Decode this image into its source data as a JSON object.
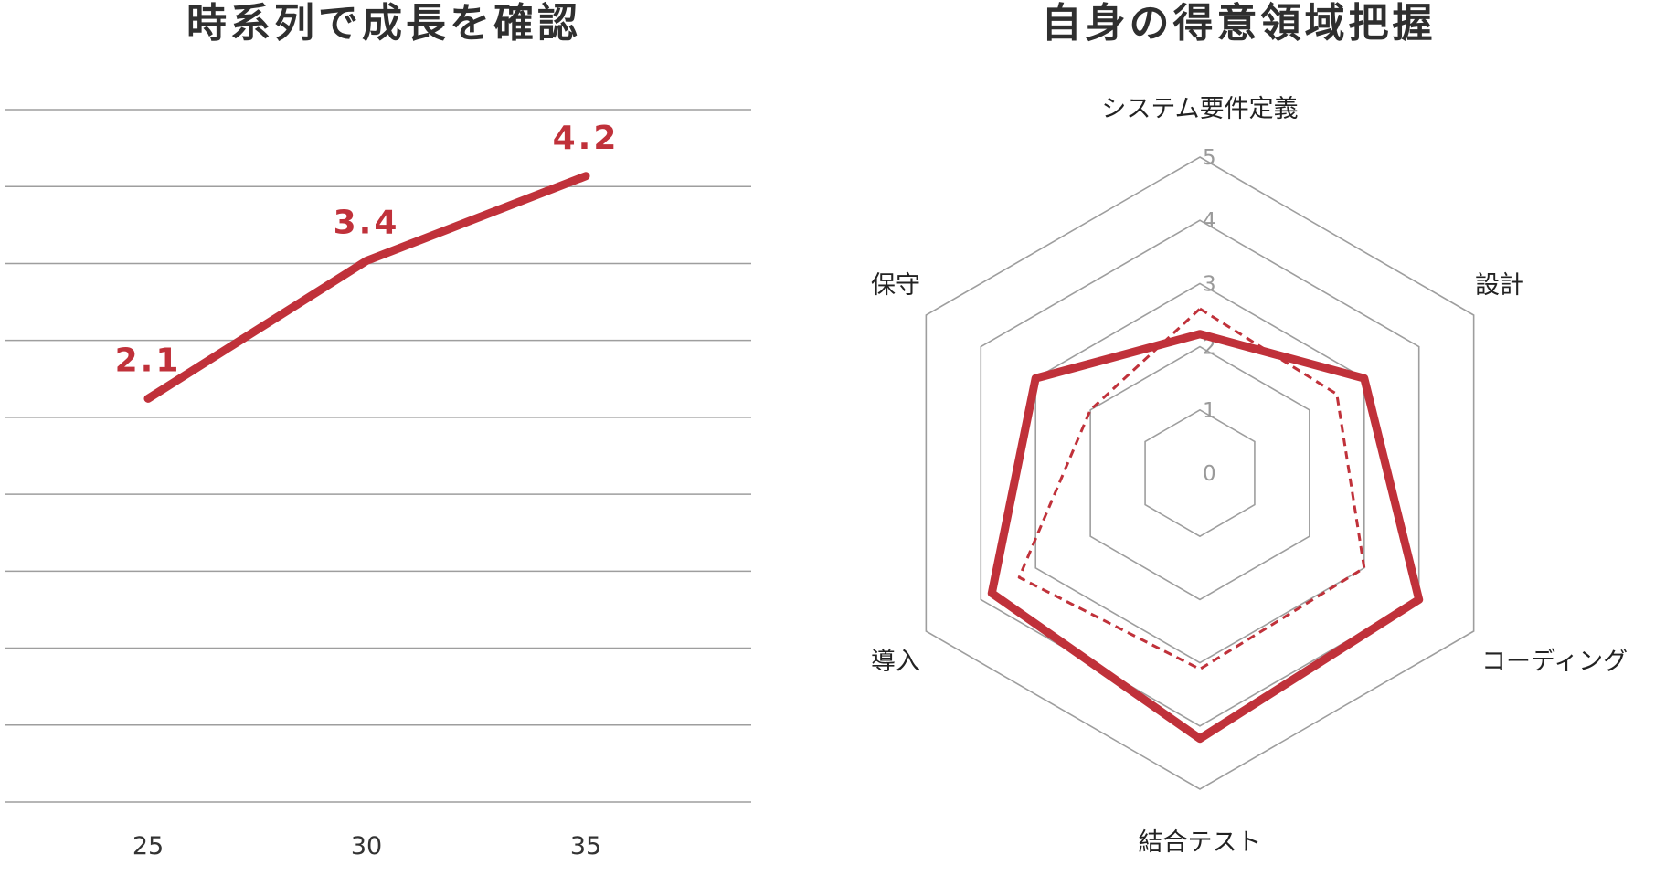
{
  "colors": {
    "accent": "#c0313a",
    "grid": "#9e9e9e",
    "title": "#2f2f2f"
  },
  "titles": {
    "left": "時系列で成長を確認",
    "right": "自身の得意領域把握"
  },
  "chart_data": [
    {
      "type": "line",
      "title": "時系列で成長を確認",
      "xlabel": "",
      "ylabel": "",
      "categories": [
        "25",
        "30",
        "35"
      ],
      "values": [
        2.1,
        3.4,
        4.2
      ],
      "data_labels": [
        "2.1",
        "3.4",
        "4.2"
      ],
      "ylim": [
        0,
        5
      ],
      "grid": true,
      "legend": "none",
      "color": "#c0313a"
    },
    {
      "type": "radar",
      "title": "自身の得意領域把握",
      "axes": [
        "システム要件定義",
        "設計",
        "コーディング",
        "結合テスト",
        "導入",
        "保守"
      ],
      "ticks": [
        "0",
        "1",
        "2",
        "3",
        "4",
        "5"
      ],
      "range": [
        0,
        5
      ],
      "series": [
        {
          "values": [
            2.2,
            3.0,
            4.0,
            4.2,
            3.8,
            3.0
          ],
          "style": "solid",
          "color": "#c0313a"
        },
        {
          "values": [
            2.6,
            2.5,
            3.0,
            3.1,
            3.3,
            2.0
          ],
          "style": "dashed",
          "color": "#c0313a"
        }
      ],
      "grid": true,
      "legend": "none"
    }
  ]
}
